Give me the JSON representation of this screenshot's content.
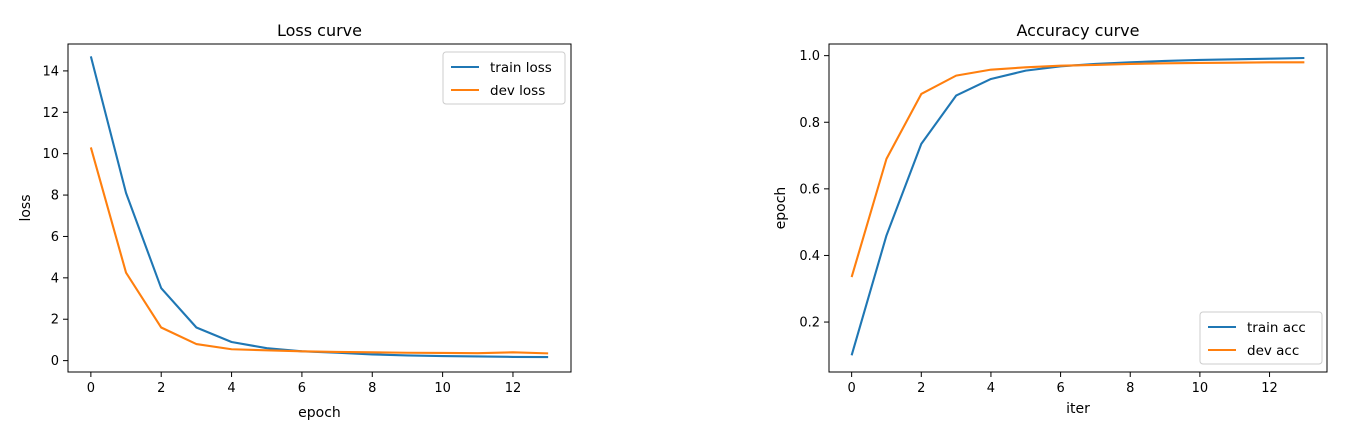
{
  "chart_data": [
    {
      "type": "line",
      "title": "Loss curve",
      "xlabel": "epoch",
      "ylabel": "loss",
      "xlim": [
        -0.65,
        13.65
      ],
      "ylim": [
        -0.55,
        15.3
      ],
      "xticks": [
        0,
        2,
        4,
        6,
        8,
        10,
        12
      ],
      "yticks": [
        0,
        2,
        4,
        6,
        8,
        10,
        12,
        14
      ],
      "x": [
        0,
        1,
        2,
        3,
        4,
        5,
        6,
        7,
        8,
        9,
        10,
        11,
        12,
        13
      ],
      "series": [
        {
          "name": "train loss",
          "color": "#1f77b4",
          "values": [
            14.7,
            8.1,
            3.5,
            1.6,
            0.9,
            0.6,
            0.45,
            0.38,
            0.3,
            0.25,
            0.22,
            0.2,
            0.18,
            0.17
          ]
        },
        {
          "name": "dev loss",
          "color": "#ff7f0e",
          "values": [
            10.3,
            4.25,
            1.6,
            0.8,
            0.55,
            0.5,
            0.45,
            0.42,
            0.4,
            0.38,
            0.37,
            0.36,
            0.4,
            0.35
          ]
        }
      ],
      "legend": "upper-right",
      "grid": false
    },
    {
      "type": "line",
      "title": "Accuracy curve",
      "xlabel": "iter",
      "ylabel": "epoch",
      "xlim": [
        -0.65,
        13.65
      ],
      "ylim": [
        0.05,
        1.035
      ],
      "xticks": [
        0,
        2,
        4,
        6,
        8,
        10,
        12
      ],
      "yticks": [
        0.2,
        0.4,
        0.6,
        0.8,
        1.0
      ],
      "ytick_labels": [
        "0.2",
        "0.4",
        "0.6",
        "0.8",
        "1.0"
      ],
      "x": [
        0,
        1,
        2,
        3,
        4,
        5,
        6,
        7,
        8,
        9,
        10,
        11,
        12,
        13
      ],
      "series": [
        {
          "name": "train acc",
          "color": "#1f77b4",
          "values": [
            0.1,
            0.46,
            0.735,
            0.88,
            0.93,
            0.955,
            0.968,
            0.975,
            0.98,
            0.984,
            0.987,
            0.989,
            0.991,
            0.993
          ]
        },
        {
          "name": "dev acc",
          "color": "#ff7f0e",
          "values": [
            0.335,
            0.69,
            0.885,
            0.94,
            0.958,
            0.965,
            0.97,
            0.972,
            0.975,
            0.977,
            0.978,
            0.979,
            0.98,
            0.98
          ]
        }
      ],
      "legend": "lower-right",
      "grid": false
    }
  ]
}
